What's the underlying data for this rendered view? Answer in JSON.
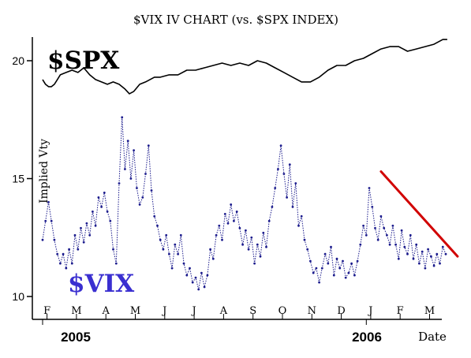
{
  "chart_data": {
    "type": "line",
    "title": "$VIX IV CHART (vs. $SPX INDEX)",
    "ylabel": "Implied Vty",
    "xlabel": "Date",
    "ylim": [
      9.2,
      21
    ],
    "y_ticks": [
      10,
      15,
      20
    ],
    "x_months": [
      "F",
      "M",
      "A",
      "M",
      "J",
      "J",
      "A",
      "S",
      "O",
      "N",
      "D",
      "J",
      "F",
      "M"
    ],
    "years": [
      "2005",
      "2006"
    ],
    "colors": {
      "vix": "#1a1a8c",
      "spx": "#000000",
      "trendline": "#d10000",
      "vix_label": "#3a2fd0"
    },
    "series": [
      {
        "name": "$SPX",
        "x": [
          0.0,
          0.1,
          0.2,
          0.3,
          0.4,
          0.5,
          0.6,
          0.8,
          1.0,
          1.2,
          1.4,
          1.6,
          1.8,
          2.0,
          2.2,
          2.4,
          2.6,
          2.8,
          2.95,
          3.1,
          3.3,
          3.5,
          3.8,
          4.0,
          4.3,
          4.6,
          4.9,
          5.2,
          5.5,
          5.8,
          6.1,
          6.4,
          6.7,
          7.0,
          7.3,
          7.6,
          7.9,
          8.2,
          8.5,
          8.8,
          9.1,
          9.4,
          9.7,
          10.0,
          10.3,
          10.6,
          10.9,
          11.2,
          11.5,
          11.8,
          12.1,
          12.4,
          12.7,
          13.0,
          13.3,
          13.6,
          13.75
        ],
        "values": [
          19.2,
          19.0,
          18.9,
          18.9,
          19.0,
          19.2,
          19.4,
          19.5,
          19.6,
          19.5,
          19.7,
          19.4,
          19.2,
          19.1,
          19.0,
          19.1,
          19.0,
          18.8,
          18.6,
          18.7,
          19.0,
          19.1,
          19.3,
          19.3,
          19.4,
          19.4,
          19.6,
          19.6,
          19.7,
          19.8,
          19.9,
          19.8,
          19.9,
          19.8,
          20.0,
          19.9,
          19.7,
          19.5,
          19.3,
          19.1,
          19.1,
          19.3,
          19.6,
          19.8,
          19.8,
          20.0,
          20.1,
          20.3,
          20.5,
          20.6,
          20.6,
          20.4,
          20.5,
          20.6,
          20.7,
          20.9,
          20.9
        ]
      },
      {
        "name": "$VIX",
        "x": [
          0.0,
          0.1,
          0.2,
          0.3,
          0.4,
          0.5,
          0.6,
          0.7,
          0.8,
          0.9,
          1.0,
          1.1,
          1.2,
          1.3,
          1.4,
          1.5,
          1.6,
          1.7,
          1.8,
          1.9,
          2.0,
          2.1,
          2.2,
          2.3,
          2.4,
          2.5,
          2.6,
          2.7,
          2.8,
          2.9,
          3.0,
          3.1,
          3.2,
          3.3,
          3.4,
          3.5,
          3.6,
          3.7,
          3.8,
          3.9,
          4.0,
          4.1,
          4.2,
          4.3,
          4.4,
          4.5,
          4.6,
          4.7,
          4.8,
          4.9,
          5.0,
          5.1,
          5.2,
          5.3,
          5.4,
          5.5,
          5.6,
          5.7,
          5.8,
          5.9,
          6.0,
          6.1,
          6.2,
          6.3,
          6.4,
          6.5,
          6.6,
          6.7,
          6.8,
          6.9,
          7.0,
          7.1,
          7.2,
          7.3,
          7.4,
          7.5,
          7.6,
          7.7,
          7.8,
          7.9,
          8.0,
          8.1,
          8.2,
          8.3,
          8.4,
          8.5,
          8.6,
          8.7,
          8.8,
          8.9,
          9.0,
          9.1,
          9.2,
          9.3,
          9.4,
          9.5,
          9.6,
          9.7,
          9.8,
          9.9,
          10.0,
          10.1,
          10.2,
          10.3,
          10.4,
          10.5,
          10.6,
          10.7,
          10.8,
          10.9,
          11.0,
          11.1,
          11.2,
          11.3,
          11.4,
          11.5,
          11.6,
          11.7,
          11.8,
          11.9,
          12.0,
          12.1,
          12.2,
          12.3,
          12.4,
          12.5,
          12.6,
          12.7,
          12.8,
          12.9,
          13.0,
          13.1,
          13.2,
          13.3,
          13.4,
          13.5,
          13.6,
          13.7
        ],
        "values": [
          12.4,
          13.2,
          14.0,
          13.2,
          12.4,
          11.8,
          11.4,
          11.8,
          11.2,
          12.0,
          11.4,
          12.6,
          12.0,
          12.9,
          12.3,
          13.1,
          12.6,
          13.6,
          13.0,
          14.2,
          13.8,
          14.4,
          13.6,
          13.2,
          12.0,
          11.4,
          14.8,
          17.6,
          15.4,
          16.6,
          15.0,
          16.2,
          14.6,
          13.9,
          14.2,
          15.2,
          16.4,
          14.5,
          13.4,
          13.0,
          12.4,
          12.0,
          12.6,
          11.8,
          11.2,
          12.2,
          11.8,
          12.6,
          11.4,
          10.9,
          11.2,
          10.6,
          10.8,
          10.3,
          11.0,
          10.4,
          10.9,
          12.0,
          11.6,
          12.6,
          13.0,
          12.4,
          13.5,
          13.1,
          13.9,
          13.2,
          13.6,
          12.9,
          12.2,
          12.8,
          12.0,
          12.5,
          11.4,
          12.2,
          11.7,
          12.7,
          12.1,
          13.2,
          13.8,
          14.6,
          15.4,
          16.4,
          15.2,
          14.2,
          15.6,
          13.8,
          14.8,
          13.0,
          13.4,
          12.4,
          12.0,
          11.5,
          11.0,
          11.2,
          10.6,
          11.2,
          11.8,
          11.4,
          12.1,
          10.9,
          11.6,
          11.2,
          11.5,
          10.8,
          11.0,
          11.4,
          10.9,
          11.5,
          12.2,
          13.0,
          12.6,
          14.6,
          13.8,
          12.9,
          12.4,
          13.4,
          12.9,
          12.6,
          12.2,
          13.0,
          12.2,
          11.6,
          12.8,
          12.1,
          11.8,
          12.6,
          11.6,
          12.2,
          11.4,
          11.9,
          11.2,
          12.0,
          11.7,
          11.3,
          11.8,
          11.4,
          12.1,
          11.8
        ]
      }
    ],
    "trendline": {
      "x": [
        11.5,
        14.1
      ],
      "values": [
        15.3,
        11.7
      ]
    },
    "annotations": [
      {
        "text": "$SPX",
        "series": "$SPX"
      },
      {
        "text": "$VIX",
        "series": "$VIX"
      }
    ]
  }
}
